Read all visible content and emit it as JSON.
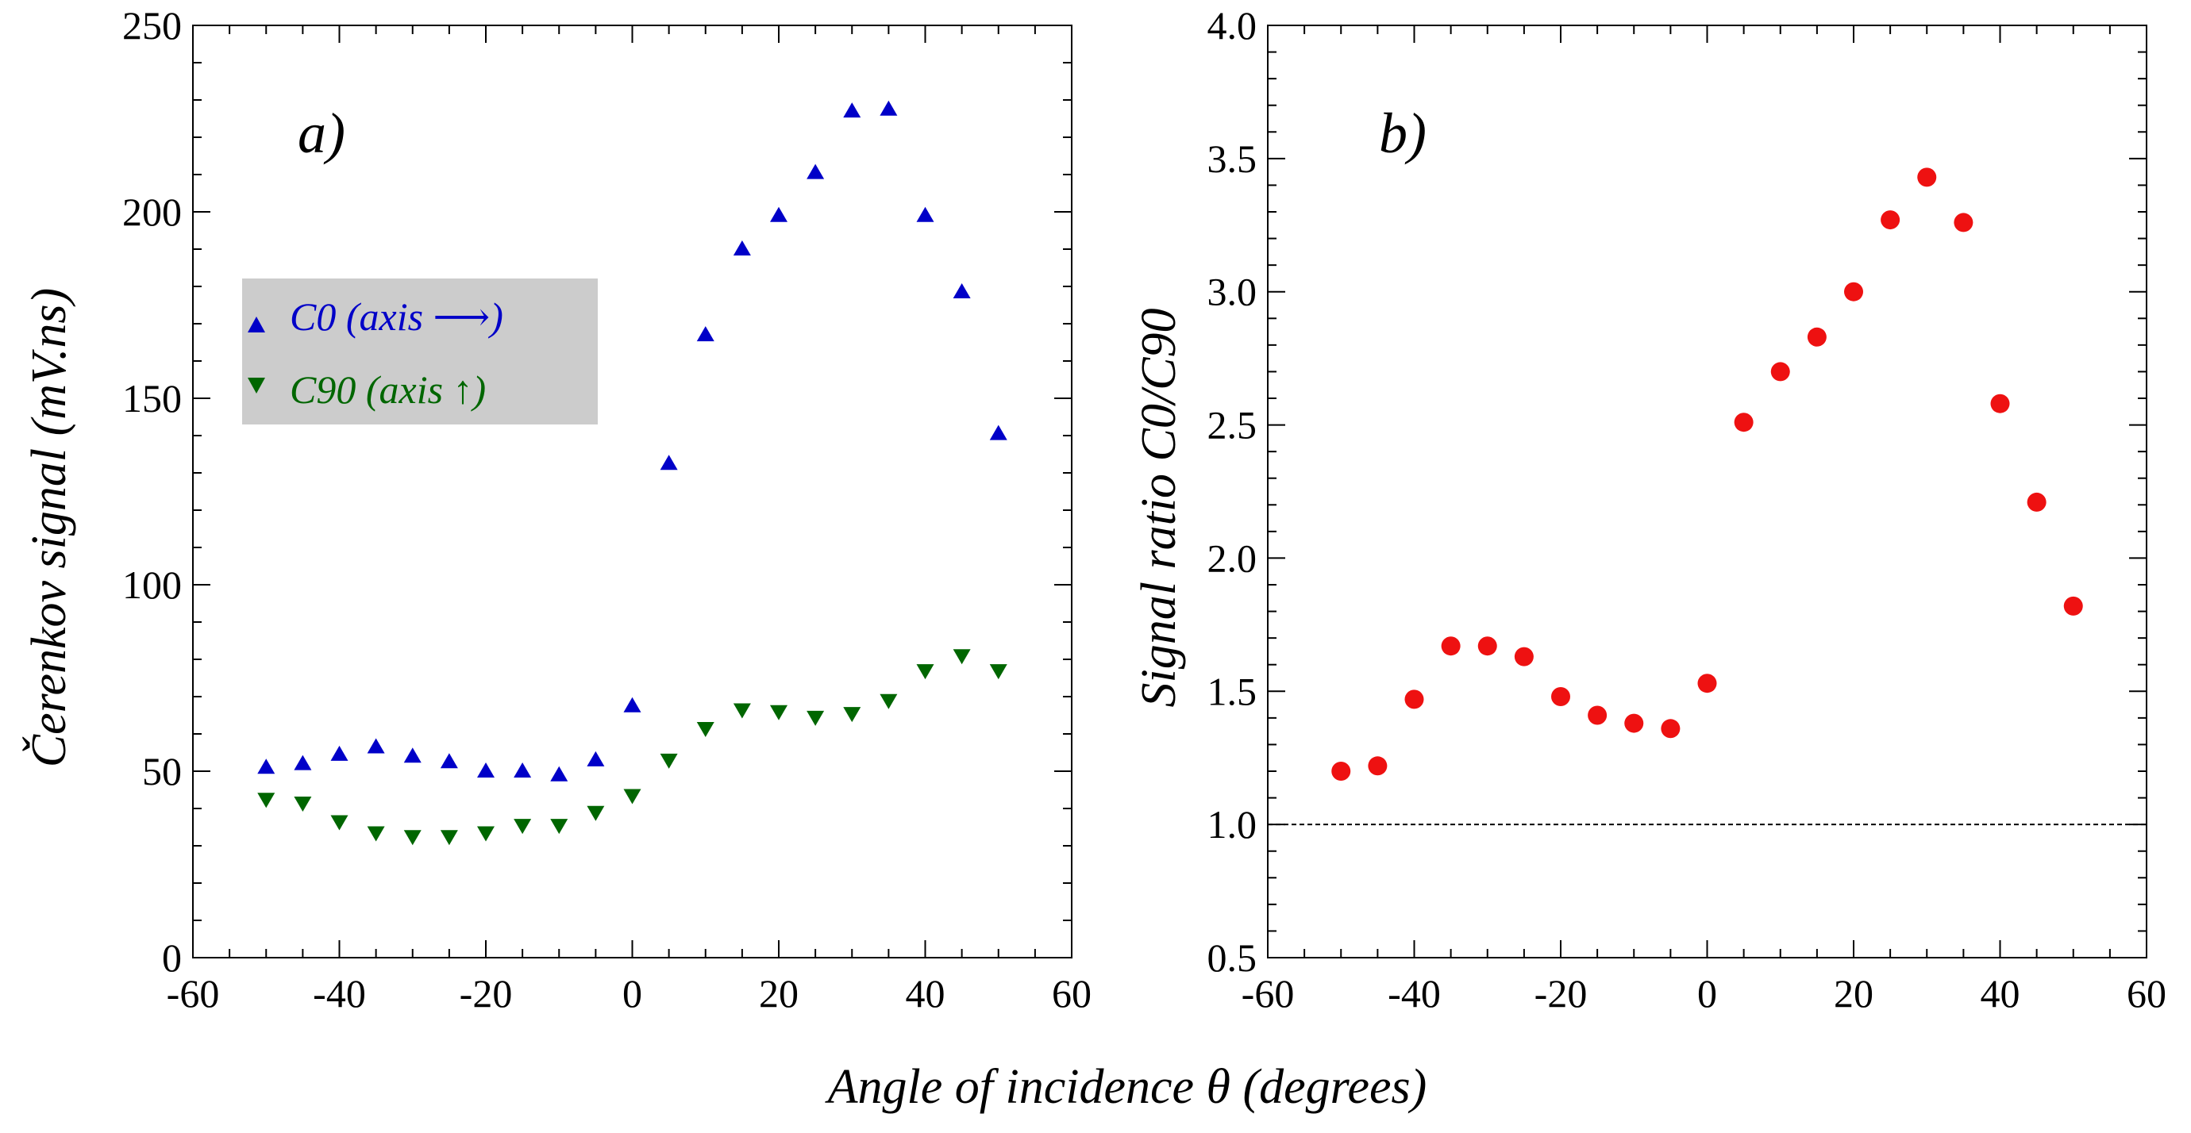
{
  "figure": {
    "xlabel": "Angle of incidence θ (degrees)"
  },
  "chart_data": [
    {
      "type": "scatter",
      "panel_label": "a)",
      "ylabel": "Čerenkov signal (mV.ns)",
      "xlim": [
        -60,
        60
      ],
      "ylim": [
        0,
        250
      ],
      "xticks": [
        -60,
        -40,
        -20,
        0,
        20,
        40,
        60
      ],
      "yticks": [
        0,
        50,
        100,
        150,
        200,
        250
      ],
      "grid": false,
      "legend_position": "upper-left",
      "series": [
        {
          "name": "C0   (axis ⟶)",
          "marker": "triangle-up",
          "color": "#0000c8",
          "x": [
            -50,
            -45,
            -40,
            -35,
            -30,
            -25,
            -20,
            -15,
            -10,
            -5,
            0,
            5,
            10,
            15,
            20,
            25,
            30,
            35,
            40,
            45,
            50
          ],
          "y": [
            51,
            52,
            54.5,
            56.5,
            54,
            52.5,
            50,
            50,
            49,
            53,
            67.5,
            132.5,
            167,
            190,
            199,
            210.5,
            227,
            227.5,
            199,
            178.5,
            140.5
          ]
        },
        {
          "name": "C90 (axis ↑)",
          "marker": "triangle-down",
          "color": "#006600",
          "x": [
            -50,
            -45,
            -40,
            -35,
            -30,
            -25,
            -20,
            -15,
            -10,
            -5,
            0,
            5,
            10,
            15,
            20,
            25,
            30,
            35,
            40,
            45,
            50
          ],
          "y": [
            42.5,
            41.5,
            36.5,
            33.5,
            32.5,
            32.5,
            33.5,
            35.5,
            35.5,
            39,
            43.5,
            53,
            61.5,
            66.5,
            66,
            64.5,
            65.5,
            69,
            77,
            81,
            77
          ]
        }
      ]
    },
    {
      "type": "scatter",
      "panel_label": "b)",
      "ylabel": "Signal ratio  C0/C90",
      "xlim": [
        -60,
        60
      ],
      "ylim": [
        0.5,
        4.0
      ],
      "xticks": [
        -60,
        -40,
        -20,
        0,
        20,
        40,
        60
      ],
      "yticks": [
        "0.5",
        "1.0",
        "1.5",
        "2.0",
        "2.5",
        "3.0",
        "3.5",
        "4.0"
      ],
      "grid": false,
      "reference_line_y": 1.0,
      "series": [
        {
          "marker": "circle",
          "color": "#ee1111",
          "x": [
            -50,
            -45,
            -40,
            -35,
            -30,
            -25,
            -20,
            -15,
            -10,
            -5,
            0,
            5,
            10,
            15,
            20,
            25,
            30,
            35,
            40,
            45,
            50
          ],
          "y": [
            1.2,
            1.22,
            1.47,
            1.67,
            1.67,
            1.63,
            1.48,
            1.41,
            1.38,
            1.36,
            1.53,
            2.51,
            2.7,
            2.83,
            3.0,
            3.27,
            3.43,
            3.26,
            2.58,
            2.21,
            1.82
          ]
        }
      ]
    }
  ]
}
